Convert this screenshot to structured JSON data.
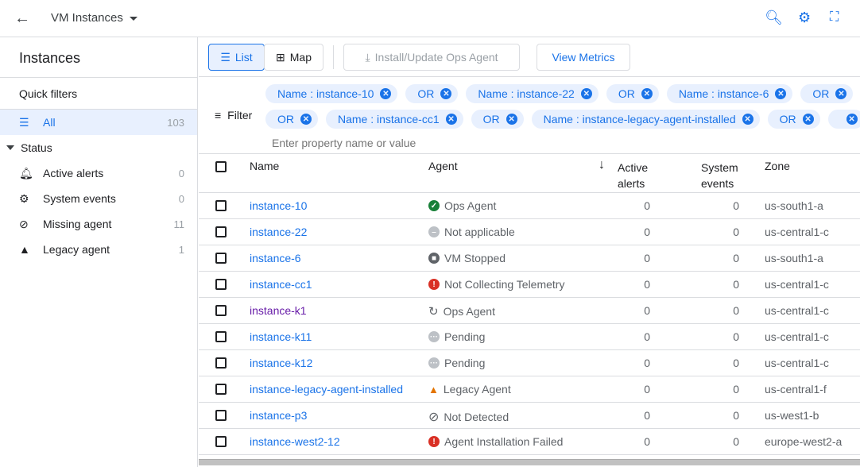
{
  "header": {
    "title": "VM Instances",
    "icons": [
      "back-arrow-icon",
      "search-refresh-icon",
      "gear-icon",
      "fullscreen-icon"
    ]
  },
  "sidebar": {
    "title": "Instances",
    "quick_filters": "Quick filters",
    "all": {
      "label": "All",
      "count": "103"
    },
    "status_label": "Status",
    "items": [
      {
        "label": "Active alerts",
        "count": "0",
        "icon": "bell-icon"
      },
      {
        "label": "System events",
        "count": "0",
        "icon": "gear-event-icon"
      },
      {
        "label": "Missing agent",
        "count": "11",
        "icon": "prohibited-icon"
      },
      {
        "label": "Legacy agent",
        "count": "1",
        "icon": "warning-icon"
      }
    ]
  },
  "toolbar": {
    "list": "List",
    "map": "Map",
    "install": "Install/Update Ops Agent",
    "metrics": "View Metrics"
  },
  "filter": {
    "label": "Filter",
    "placeholder": "Enter property name or value",
    "row1": [
      "Name : instance-10",
      "OR",
      "Name : instance-22",
      "OR",
      "Name : instance-6",
      "OR"
    ],
    "row2": [
      "OR",
      "Name : instance-cc1",
      "OR",
      "Name : instance-legacy-agent-installed",
      "OR",
      ""
    ]
  },
  "table": {
    "headers": {
      "name": "Name",
      "agent": "Agent",
      "alerts1": "Active",
      "alerts2": "alerts",
      "events1": "System",
      "events2": "events",
      "zone": "Zone"
    },
    "rows": [
      {
        "name": "instance-10",
        "agent": "Ops Agent",
        "status": "ok",
        "alerts": "0",
        "events": "0",
        "zone": "us-south1-a"
      },
      {
        "name": "instance-22",
        "agent": "Not applicable",
        "status": "na",
        "alerts": "0",
        "events": "0",
        "zone": "us-central1-c"
      },
      {
        "name": "instance-6",
        "agent": "VM Stopped",
        "status": "stopped",
        "alerts": "0",
        "events": "0",
        "zone": "us-south1-a"
      },
      {
        "name": "instance-cc1",
        "agent": "Not Collecting Telemetry",
        "status": "error",
        "alerts": "0",
        "events": "0",
        "zone": "us-central1-c"
      },
      {
        "name": "instance-k1",
        "agent": "Ops Agent",
        "status": "updating",
        "alerts": "0",
        "events": "0",
        "zone": "us-central1-c",
        "visited": true
      },
      {
        "name": "instance-k11",
        "agent": "Pending",
        "status": "pending",
        "alerts": "0",
        "events": "0",
        "zone": "us-central1-c"
      },
      {
        "name": "instance-k12",
        "agent": "Pending",
        "status": "pending",
        "alerts": "0",
        "events": "0",
        "zone": "us-central1-c"
      },
      {
        "name": "instance-legacy-agent-installed",
        "agent": "Legacy Agent",
        "status": "warning",
        "alerts": "0",
        "events": "0",
        "zone": "us-central1-f"
      },
      {
        "name": "instance-p3",
        "agent": "Not Detected",
        "status": "notdetected",
        "alerts": "0",
        "events": "0",
        "zone": "us-west1-b"
      },
      {
        "name": "instance-west2-12",
        "agent": "Agent Installation Failed",
        "status": "error",
        "alerts": "0",
        "events": "0",
        "zone": "europe-west2-a"
      }
    ]
  },
  "colors": {
    "accent": "#1a73e8",
    "ok": "#188038",
    "error": "#d93025",
    "warning": "#e37400",
    "grey": "#bdc1c6",
    "visited": "#681da8"
  }
}
